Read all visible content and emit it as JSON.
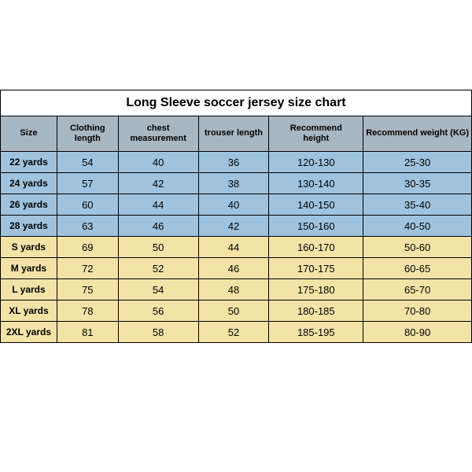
{
  "title": "Long Sleeve soccer jersey size chart",
  "colors": {
    "header_bg": "#a9b7c2",
    "blue_row": "#9fc3df",
    "yellow_row": "#f3e3a7",
    "border": "#000000",
    "text": "#000000"
  },
  "columns": [
    {
      "key": "size",
      "label_lines": [
        "Size"
      ],
      "class": "col-size"
    },
    {
      "key": "cloth",
      "label_lines": [
        "Clothing",
        "length"
      ],
      "class": "col-cloth"
    },
    {
      "key": "chest",
      "label_lines": [
        "chest measurement"
      ],
      "class": "col-chest"
    },
    {
      "key": "trouser",
      "label_lines": [
        "trouser length"
      ],
      "class": "col-trouser"
    },
    {
      "key": "height",
      "label_lines": [
        "Recommend",
        "height"
      ],
      "class": "col-height"
    },
    {
      "key": "weight",
      "label_lines": [
        "Recommend weight (KG)"
      ],
      "class": "col-weight"
    }
  ],
  "rows": [
    {
      "group": "blue",
      "cells": [
        "22 yards",
        "54",
        "40",
        "36",
        "120-130",
        "25-30"
      ]
    },
    {
      "group": "blue",
      "cells": [
        "24 yards",
        "57",
        "42",
        "38",
        "130-140",
        "30-35"
      ]
    },
    {
      "group": "blue",
      "cells": [
        "26 yards",
        "60",
        "44",
        "40",
        "140-150",
        "35-40"
      ]
    },
    {
      "group": "blue",
      "cells": [
        "28 yards",
        "63",
        "46",
        "42",
        "150-160",
        "40-50"
      ]
    },
    {
      "group": "yellow",
      "cells": [
        "S yards",
        "69",
        "50",
        "44",
        "160-170",
        "50-60"
      ]
    },
    {
      "group": "yellow",
      "cells": [
        "M yards",
        "72",
        "52",
        "46",
        "170-175",
        "60-65"
      ]
    },
    {
      "group": "yellow",
      "cells": [
        "L yards",
        "75",
        "54",
        "48",
        "175-180",
        "65-70"
      ]
    },
    {
      "group": "yellow",
      "cells": [
        "XL yards",
        "78",
        "56",
        "50",
        "180-185",
        "70-80"
      ]
    },
    {
      "group": "yellow",
      "cells": [
        "2XL yards",
        "81",
        "58",
        "52",
        "185-195",
        "80-90"
      ]
    }
  ]
}
